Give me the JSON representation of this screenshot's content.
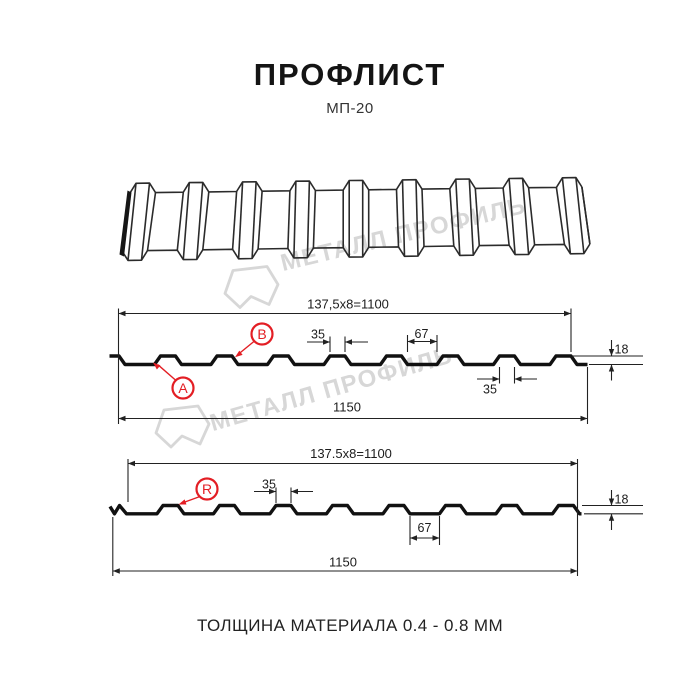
{
  "header": {
    "title": "ПРОФЛИСТ",
    "subtitle": "МП-20"
  },
  "watermark": {
    "text": "МЕТАЛЛ ПРОФИЛЬ"
  },
  "footer": {
    "text": "ТОЛЩИНА МАТЕРИАЛА 0.4 - 0.8 ММ"
  },
  "colors": {
    "accent_red": "#e31e24",
    "line": "#1d1d1d",
    "watermark_gray": "#d7d7d7"
  },
  "profile_top": {
    "pitch_dim": "137,5x8=1100",
    "overall_dim": "1150",
    "rib_top_dim": "35",
    "rib_bottom_dim": "35",
    "valley_dim": "67",
    "height_dim": "18",
    "label_a": "A",
    "label_b": "B"
  },
  "profile_bottom": {
    "pitch_dim": "137.5x8=1100",
    "overall_dim": "1150",
    "rib_top_dim": "35",
    "valley_dim": "67",
    "height_dim": "18",
    "label_r": "R"
  }
}
